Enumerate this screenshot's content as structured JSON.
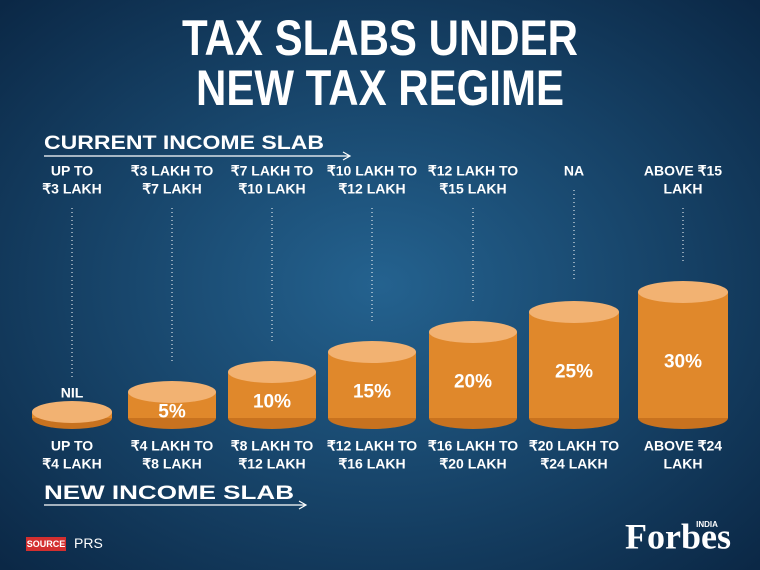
{
  "title": [
    "TAX SLABS UNDER",
    "NEW TAX REGIME"
  ],
  "current_heading": "CURRENT INCOME SLAB",
  "new_heading": "NEW INCOME SLAB",
  "slabs": [
    {
      "current": [
        "UP TO",
        "₹3 LAKH"
      ],
      "rate": 0,
      "rate_label": "NIL",
      "new": [
        "UP TO",
        "₹4 LAKH"
      ]
    },
    {
      "current": [
        "₹3 LAKH TO",
        "₹7 LAKH"
      ],
      "rate": 5,
      "rate_label": "5%",
      "new": [
        "₹4 LAKH TO",
        "₹8 LAKH"
      ]
    },
    {
      "current": [
        "₹7 LAKH TO",
        "₹10 LAKH"
      ],
      "rate": 10,
      "rate_label": "10%",
      "new": [
        "₹8 LAKH TO",
        "₹12 LAKH"
      ]
    },
    {
      "current": [
        "₹10 LAKH TO",
        "₹12 LAKH"
      ],
      "rate": 15,
      "rate_label": "15%",
      "new": [
        "₹12 LAKH TO",
        "₹16 LAKH"
      ]
    },
    {
      "current": [
        "₹12 LAKH TO",
        "₹15 LAKH"
      ],
      "rate": 20,
      "rate_label": "20%",
      "new": [
        "₹16 LAKH TO",
        "₹20 LAKH"
      ]
    },
    {
      "current": [
        "NA"
      ],
      "rate": 25,
      "rate_label": "25%",
      "new": [
        "₹20 LAKH TO",
        "₹24 LAKH"
      ]
    },
    {
      "current": [
        "ABOVE ₹15",
        "LAKH"
      ],
      "rate": 30,
      "rate_label": "30%",
      "new": [
        "ABOVE ₹24",
        "LAKH"
      ]
    }
  ],
  "source_label": "SOURCE",
  "source": "PRS",
  "brand": "Forbes",
  "brand_region": "INDIA"
}
